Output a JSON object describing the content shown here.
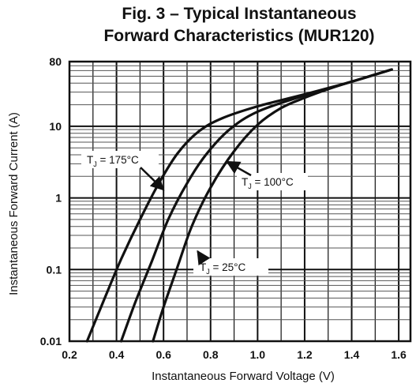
{
  "chart_data": {
    "type": "line",
    "title_line1": "Fig. 3 – Typical Instantaneous",
    "title_line2": "Forward Characteristics (MUR120)",
    "xlabel": "Instantaneous Forward Voltage (V)",
    "ylabel": "Instantaneous Forward Current (A)",
    "xlim": [
      0.2,
      1.65
    ],
    "ylim": [
      0.01,
      80
    ],
    "yscale": "log",
    "grid": true,
    "x_ticks": [
      0.2,
      0.4,
      0.6,
      0.8,
      1.0,
      1.2,
      1.4,
      1.6
    ],
    "x_tick_labels": [
      "0.2",
      "0.4",
      "0.6",
      "0.8",
      "1.0",
      "1.2",
      "1.4",
      "1.6"
    ],
    "y_ticks": [
      0.01,
      0.1,
      1,
      10,
      80
    ],
    "y_tick_labels": [
      "0.01",
      "0.1",
      "1",
      "10",
      "80"
    ],
    "series": [
      {
        "name": "T_J = 175°C",
        "label_main": "T",
        "label_sub": "J",
        "label_rest": " = 175°C",
        "points": [
          [
            0.275,
            0.01
          ],
          [
            0.35,
            0.04
          ],
          [
            0.42,
            0.14
          ],
          [
            0.5,
            0.5
          ],
          [
            0.58,
            1.6
          ],
          [
            0.66,
            4.2
          ],
          [
            0.75,
            8.5
          ],
          [
            0.85,
            13
          ],
          [
            1.0,
            19
          ],
          [
            1.2,
            28
          ],
          [
            1.4,
            42
          ],
          [
            1.57,
            62
          ]
        ]
      },
      {
        "name": "T_J = 100°C",
        "label_main": "T",
        "label_sub": "J",
        "label_rest": " = 100°C",
        "points": [
          [
            0.42,
            0.01
          ],
          [
            0.48,
            0.035
          ],
          [
            0.55,
            0.13
          ],
          [
            0.62,
            0.5
          ],
          [
            0.7,
            1.6
          ],
          [
            0.78,
            4.0
          ],
          [
            0.88,
            9
          ],
          [
            1.0,
            16
          ],
          [
            1.2,
            27
          ],
          [
            1.4,
            42
          ],
          [
            1.57,
            62
          ]
        ]
      },
      {
        "name": "T_J = 25°C",
        "label_main": "T",
        "label_sub": "J",
        "label_rest": " = 25°C",
        "points": [
          [
            0.555,
            0.01
          ],
          [
            0.6,
            0.03
          ],
          [
            0.66,
            0.11
          ],
          [
            0.72,
            0.4
          ],
          [
            0.8,
            1.4
          ],
          [
            0.9,
            4.5
          ],
          [
            1.0,
            10.5
          ],
          [
            1.1,
            18
          ],
          [
            1.2,
            25
          ],
          [
            1.3,
            33
          ],
          [
            1.4,
            42
          ],
          [
            1.57,
            62
          ]
        ]
      }
    ]
  }
}
